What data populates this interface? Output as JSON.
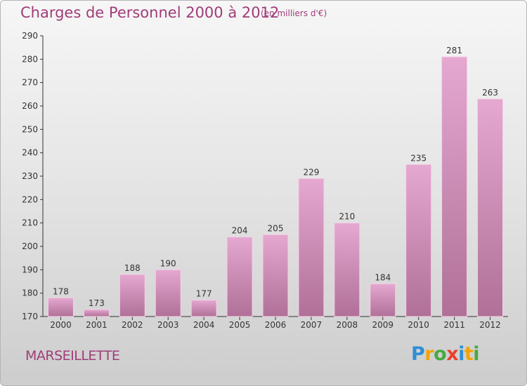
{
  "header": {
    "title": "Charges de Personnel 2000 à 2012",
    "subtitle": "(en milliers d'€)"
  },
  "footer": {
    "city": "MARSEILLETTE",
    "brand_letters": [
      {
        "ch": "P",
        "color": "#2f8fd6"
      },
      {
        "ch": "r",
        "color": "#f2a400"
      },
      {
        "ch": "o",
        "color": "#48a942"
      },
      {
        "ch": "x",
        "color": "#e8402f"
      },
      {
        "ch": "i",
        "color": "#2f8fd6"
      },
      {
        "ch": "t",
        "color": "#f2a400"
      },
      {
        "ch": "i",
        "color": "#48a942"
      }
    ]
  },
  "colors": {
    "bar_top": "#e5a8d0",
    "bar_bottom": "#b07098",
    "bar_edge": "#f3d2e6",
    "title": "#a03c78"
  },
  "chart_data": {
    "type": "bar",
    "title": "Charges de Personnel 2000 à 2012",
    "subtitle": "(en milliers d'€)",
    "xlabel": "",
    "ylabel": "",
    "categories": [
      "2000",
      "2001",
      "2002",
      "2003",
      "2004",
      "2005",
      "2006",
      "2007",
      "2008",
      "2009",
      "2010",
      "2011",
      "2012"
    ],
    "values": [
      178,
      173,
      188,
      190,
      177,
      204,
      205,
      229,
      210,
      184,
      235,
      281,
      263
    ],
    "ylim": [
      170,
      290
    ],
    "yticks": [
      170,
      180,
      190,
      200,
      210,
      220,
      230,
      240,
      250,
      260,
      270,
      280,
      290
    ],
    "grid": false,
    "legend": "none"
  }
}
